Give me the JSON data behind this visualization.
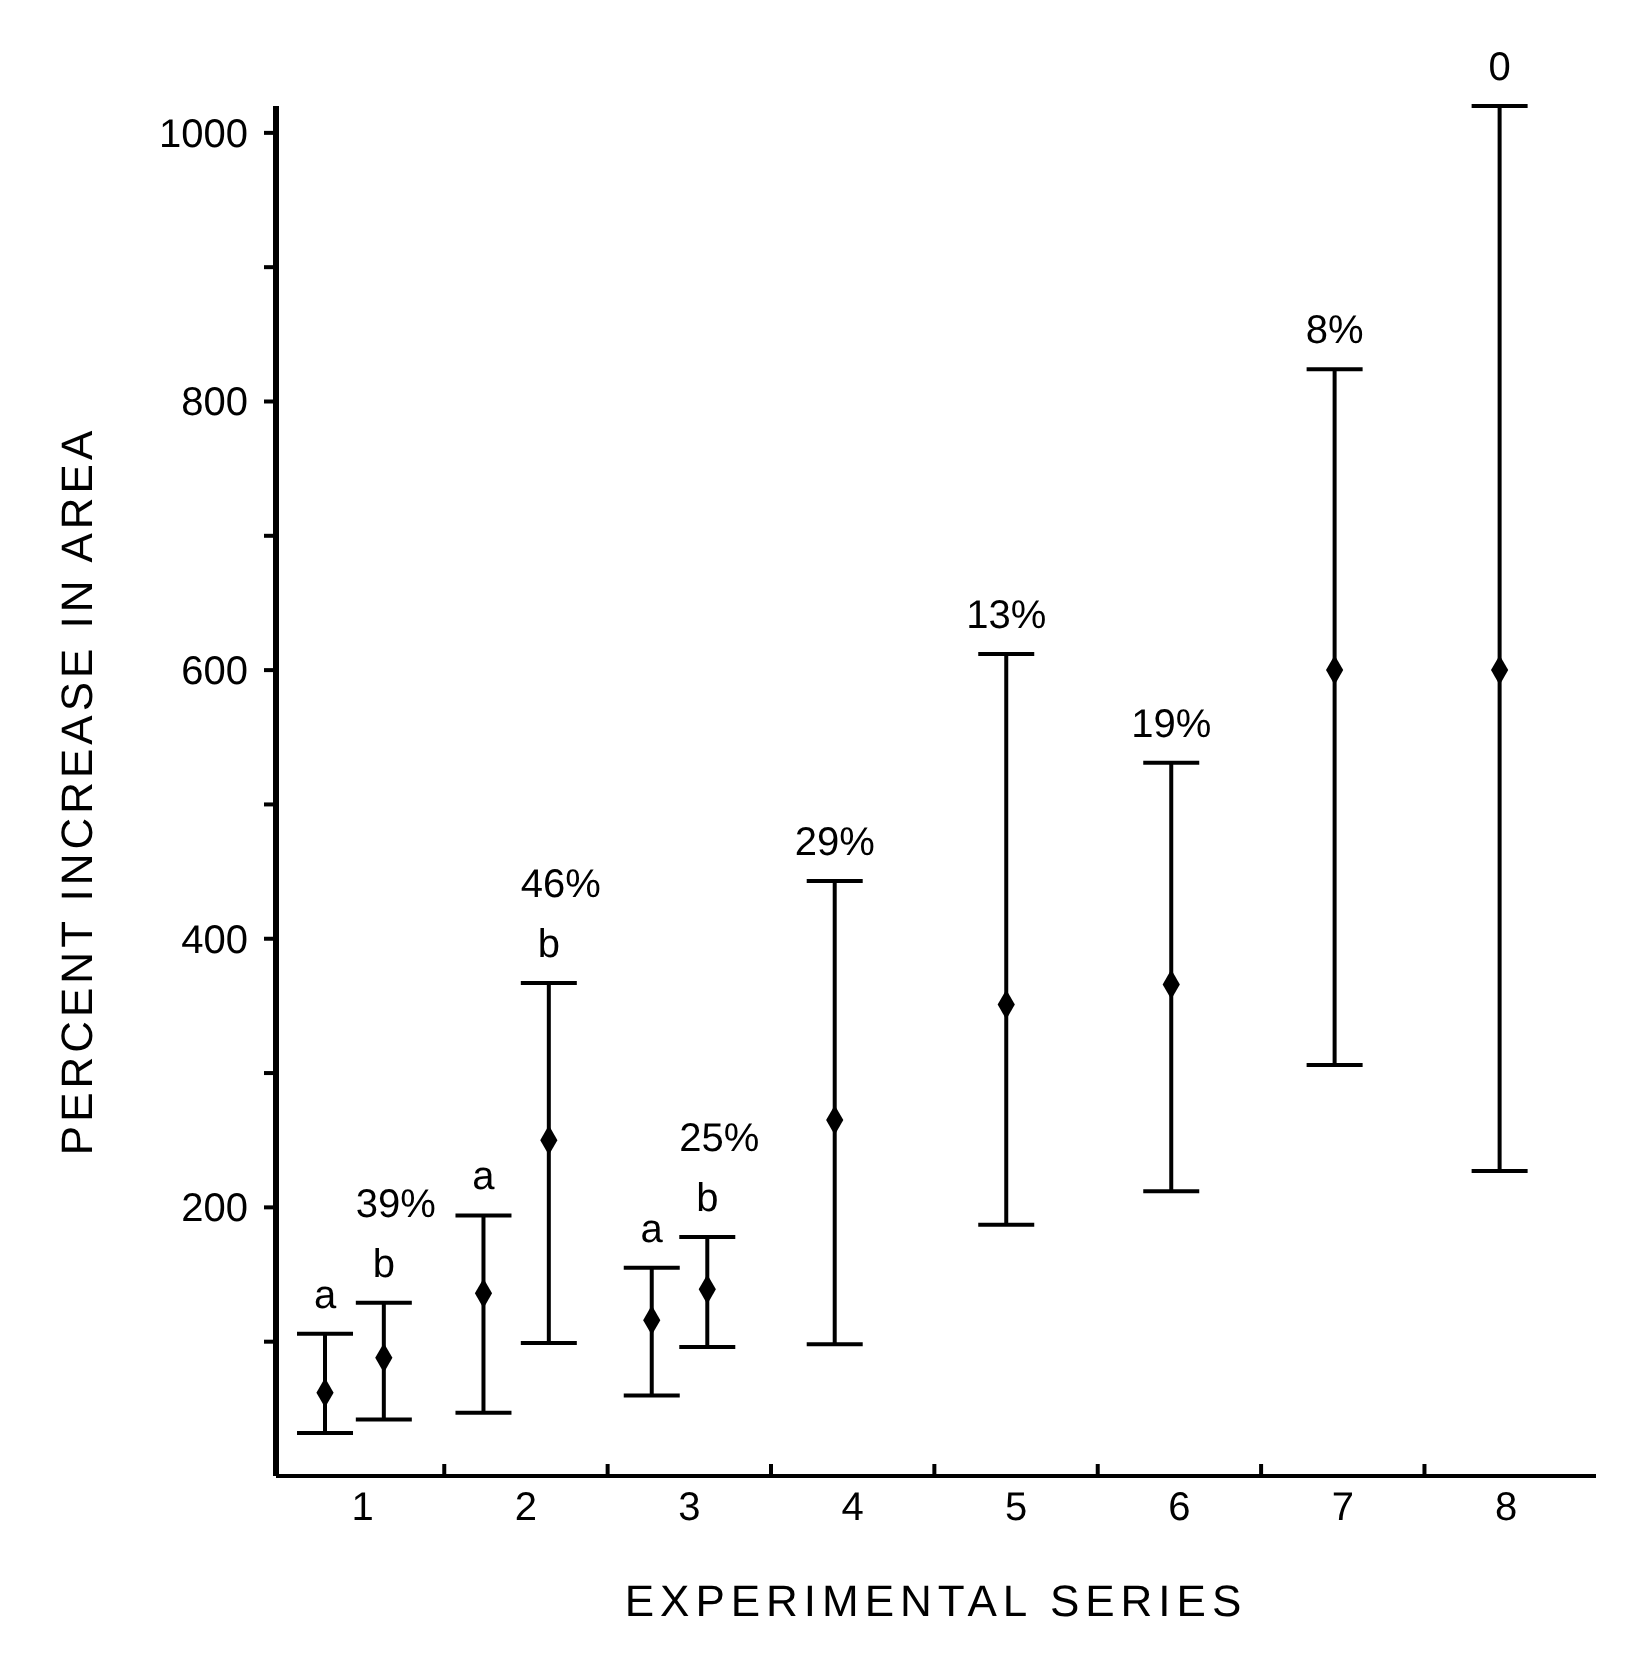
{
  "chart_data": {
    "type": "scatter",
    "xlabel": "EXPERIMENTAL SERIES",
    "ylabel": "PERCENT INCREASE IN AREA",
    "series": [
      {
        "x": [
          0.77,
          1.13,
          1.74,
          2.14,
          2.77,
          3.11,
          3.89,
          4.94,
          5.95,
          6.95,
          7.96
        ],
        "color": "#000000",
        "values": [
          62,
          88,
          136,
          250,
          116,
          139,
          265,
          351,
          366,
          600,
          600
        ],
        "errors": [
          [
            32,
            106
          ],
          [
            42,
            129
          ],
          [
            47,
            194
          ],
          [
            99,
            367
          ],
          [
            60,
            155
          ],
          [
            96,
            178
          ],
          [
            98,
            443
          ],
          [
            187,
            612
          ],
          [
            212,
            531
          ],
          [
            306,
            824
          ],
          [
            227,
            1020
          ]
        ]
      }
    ],
    "xlim": [
      0.47,
      8.55
    ],
    "xticks": [
      {
        "value": 1,
        "label": "1"
      },
      {
        "value": 2,
        "label": "2"
      },
      {
        "value": 3,
        "label": "3"
      },
      {
        "value": 4,
        "label": "4"
      },
      {
        "value": 5,
        "label": "5"
      },
      {
        "value": 6,
        "label": "6"
      },
      {
        "value": 7,
        "label": "7"
      },
      {
        "value": 8,
        "label": "8"
      },
      {
        "value": 1.5,
        "label": null
      },
      {
        "value": 2.5,
        "label": null
      },
      {
        "value": 3.5,
        "label": null
      },
      {
        "value": 4.5,
        "label": null
      },
      {
        "value": 5.5,
        "label": null
      },
      {
        "value": 6.5,
        "label": null
      },
      {
        "value": 7.5,
        "label": null
      }
    ],
    "ylim": [
      0,
      1020
    ],
    "yticks": [
      {
        "value": 100,
        "label": null
      },
      200,
      {
        "value": 300,
        "label": null
      },
      400,
      {
        "value": 500,
        "label": null
      },
      600,
      {
        "value": 700,
        "label": null
      },
      800,
      {
        "value": 900,
        "label": null
      },
      1000
    ],
    "grid": false,
    "legend": false,
    "marker": "diamond",
    "annotations": [
      {
        "text": "a",
        "x": 0.77,
        "y": 106
      },
      {
        "text": "b",
        "x": 1.13,
        "y": 129
      },
      {
        "text": "39%",
        "x": 1.13,
        "y": 129
      },
      {
        "text": "a",
        "x": 1.74,
        "y": 194
      },
      {
        "text": "b",
        "x": 2.14,
        "y": 367
      },
      {
        "text": "46%",
        "x": 2.14,
        "y": 367
      },
      {
        "text": "a",
        "x": 2.77,
        "y": 155
      },
      {
        "text": "b",
        "x": 3.11,
        "y": 178
      },
      {
        "text": "25%",
        "x": 3.11,
        "y": 178
      },
      {
        "text": "29%",
        "x": 3.89,
        "y": 443
      },
      {
        "text": "13%",
        "x": 4.94,
        "y": 612
      },
      {
        "text": "19%",
        "x": 5.95,
        "y": 531
      },
      {
        "text": "8%",
        "x": 6.95,
        "y": 824
      },
      {
        "text": "0",
        "x": 7.96,
        "y": 1020
      }
    ]
  }
}
